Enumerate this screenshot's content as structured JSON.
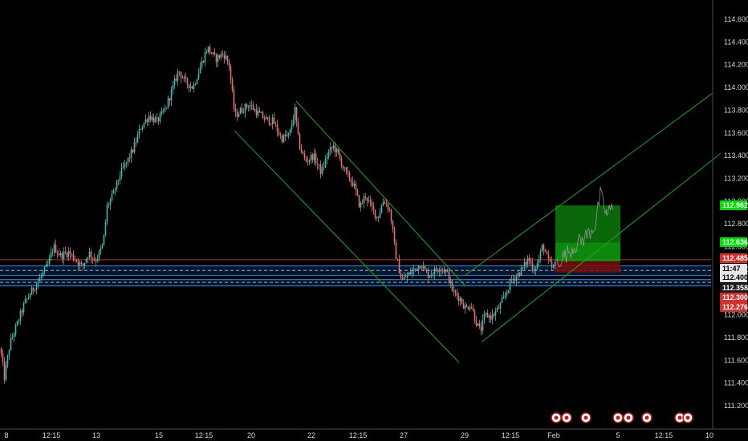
{
  "chart_data": {
    "type": "candlestick",
    "title": "",
    "ylim": [
      111.1,
      114.7
    ],
    "y_ticks": [
      "114.600",
      "114.400",
      "114.200",
      "114.000",
      "113.800",
      "113.600",
      "113.400",
      "113.200",
      "113.000",
      "112.800",
      "112.600",
      "112.400",
      "112.200",
      "112.000",
      "111.800",
      "111.600",
      "111.400",
      "111.200"
    ],
    "x_ticks": [
      "8",
      "12:15",
      "13",
      "15",
      "12:15",
      "20",
      "22",
      "12:15",
      "27",
      "29",
      "12:15",
      "Feb",
      "5",
      "12:15",
      "10"
    ],
    "grid": false,
    "colors": {
      "background": "#000000",
      "up": "#4db6ac",
      "down": "#e57373",
      "channel": "#1aa81a",
      "support": "#1e88e5",
      "resistance": "#c62828",
      "target_zone": "#0c7a0c",
      "stop_zone": "#7a0c0c",
      "projection": "#9e9e9e"
    },
    "price_path": [
      [
        0,
        111.7
      ],
      [
        5,
        111.45
      ],
      [
        12,
        111.75
      ],
      [
        20,
        111.9
      ],
      [
        30,
        112.1
      ],
      [
        40,
        112.22
      ],
      [
        52,
        112.35
      ],
      [
        60,
        112.45
      ],
      [
        66,
        112.6
      ],
      [
        75,
        112.52
      ],
      [
        85,
        112.55
      ],
      [
        95,
        112.48
      ],
      [
        102,
        112.42
      ],
      [
        110,
        112.55
      ],
      [
        118,
        112.48
      ],
      [
        122,
        112.52
      ],
      [
        128,
        112.62
      ],
      [
        133,
        112.95
      ],
      [
        140,
        113.05
      ],
      [
        150,
        113.25
      ],
      [
        158,
        113.35
      ],
      [
        165,
        113.45
      ],
      [
        175,
        113.65
      ],
      [
        185,
        113.75
      ],
      [
        195,
        113.7
      ],
      [
        205,
        113.8
      ],
      [
        215,
        114.0
      ],
      [
        222,
        114.15
      ],
      [
        230,
        114.05
      ],
      [
        240,
        114.0
      ],
      [
        250,
        114.2
      ],
      [
        258,
        114.35
      ],
      [
        268,
        114.25
      ],
      [
        278,
        114.3
      ],
      [
        285,
        114.2
      ],
      [
        292,
        113.75
      ],
      [
        300,
        113.8
      ],
      [
        310,
        113.85
      ],
      [
        320,
        113.78
      ],
      [
        330,
        113.72
      ],
      [
        340,
        113.7
      ],
      [
        350,
        113.55
      ],
      [
        360,
        113.58
      ],
      [
        367,
        113.8
      ],
      [
        372,
        113.5
      ],
      [
        380,
        113.35
      ],
      [
        390,
        113.4
      ],
      [
        400,
        113.25
      ],
      [
        408,
        113.42
      ],
      [
        415,
        113.48
      ],
      [
        420,
        113.42
      ],
      [
        430,
        113.25
      ],
      [
        440,
        113.15
      ],
      [
        448,
        112.95
      ],
      [
        455,
        113.05
      ],
      [
        462,
        112.95
      ],
      [
        470,
        112.85
      ],
      [
        478,
        113.02
      ],
      [
        486,
        112.9
      ],
      [
        492,
        112.55
      ],
      [
        500,
        112.3
      ],
      [
        508,
        112.35
      ],
      [
        516,
        112.4
      ],
      [
        524,
        112.45
      ],
      [
        532,
        112.35
      ],
      [
        540,
        112.38
      ],
      [
        548,
        112.42
      ],
      [
        556,
        112.38
      ],
      [
        564,
        112.2
      ],
      [
        572,
        112.15
      ],
      [
        580,
        112.05
      ],
      [
        586,
        112.1
      ],
      [
        592,
        111.95
      ],
      [
        598,
        111.85
      ],
      [
        604,
        112.0
      ],
      [
        612,
        111.98
      ],
      [
        620,
        112.05
      ],
      [
        628,
        112.15
      ],
      [
        636,
        112.3
      ],
      [
        644,
        112.35
      ],
      [
        652,
        112.42
      ],
      [
        658,
        112.5
      ],
      [
        664,
        112.4
      ],
      [
        670,
        112.46
      ],
      [
        676,
        112.62
      ],
      [
        682,
        112.48
      ],
      [
        688,
        112.4
      ],
      [
        692,
        112.45
      ]
    ],
    "projection_path": [
      [
        694,
        112.47
      ],
      [
        704,
        112.52
      ],
      [
        714,
        112.6
      ],
      [
        724,
        112.65
      ],
      [
        734,
        112.72
      ],
      [
        742,
        112.8
      ],
      [
        748,
        113.05
      ],
      [
        756,
        112.88
      ],
      [
        764,
        112.95
      ]
    ],
    "channels": [
      {
        "name": "down_channel_upper",
        "p1": [
          369,
          113.88
        ],
        "p2": [
          580,
          112.25
        ]
      },
      {
        "name": "down_channel_lower",
        "p1": [
          292,
          113.62
        ],
        "p2": [
          572,
          111.58
        ]
      },
      {
        "name": "up_channel_upper",
        "p1": [
          580,
          112.35
        ],
        "p2": [
          888,
          113.95
        ]
      },
      {
        "name": "up_channel_lower",
        "p1": [
          600,
          111.76
        ],
        "p2": [
          898,
          113.42
        ]
      }
    ],
    "support_zones": [
      {
        "top": 112.43,
        "bottom": 112.345,
        "mid": 112.39
      },
      {
        "top": 112.31,
        "bottom": 112.255,
        "mid": 112.285
      }
    ],
    "resistance_line": 112.485,
    "position": {
      "x_start": 692,
      "x_end": 773,
      "target": 112.962,
      "entry": 112.47,
      "stop": 112.4,
      "mid_label": 112.636
    },
    "price_tags": [
      {
        "label": "112.962",
        "value": 112.962,
        "style": "green"
      },
      {
        "label": "112.636",
        "value": 112.636,
        "style": "green"
      },
      {
        "label": "112.485",
        "value": 112.485,
        "style": "red"
      },
      {
        "label": "11:47",
        "value": 112.445,
        "style": "light"
      },
      {
        "label": "112.400",
        "value": 112.4,
        "style": "light"
      },
      {
        "label": "112.358",
        "value": 112.358,
        "style": "dark"
      },
      {
        "label": "112.300",
        "value": 112.3,
        "style": "red"
      },
      {
        "label": "112.276",
        "value": 112.276,
        "style": "red"
      }
    ],
    "event_markers": [
      "693",
      "706",
      "730",
      "770",
      "783",
      "806",
      "847",
      "857"
    ]
  }
}
